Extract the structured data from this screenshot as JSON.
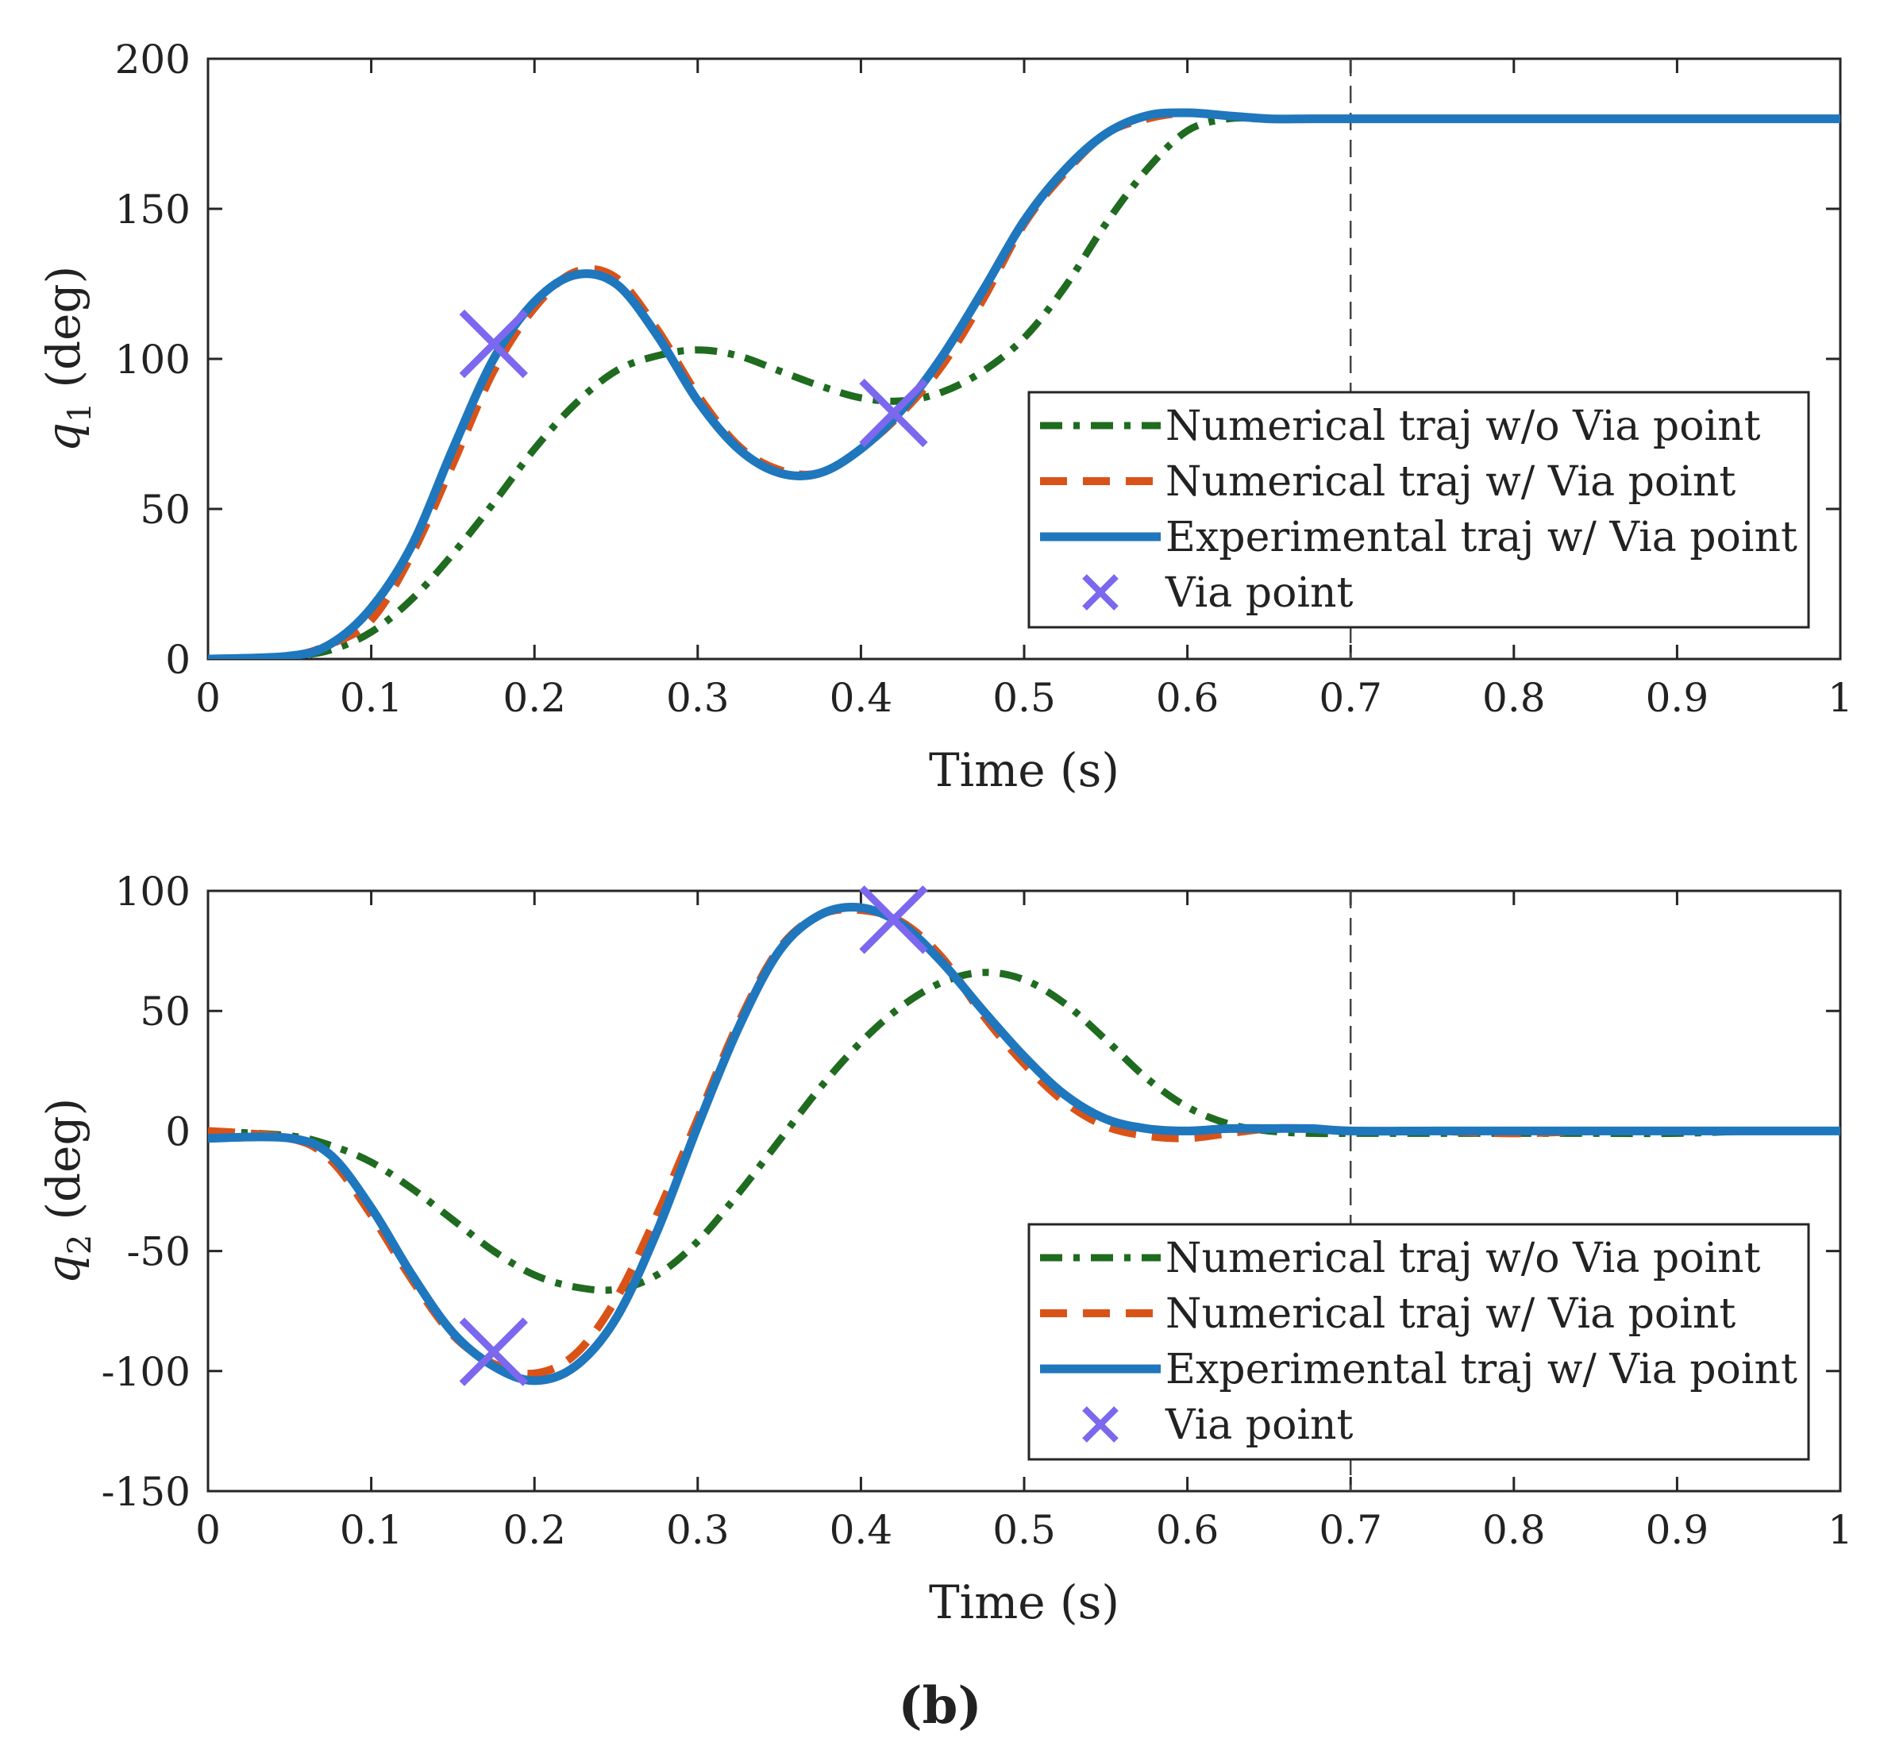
{
  "caption": "(b)",
  "chart_data": [
    {
      "type": "line",
      "id": "q1",
      "xlabel": "Time (s)",
      "ylabel_symbol": "q",
      "ylabel_subscript": "1",
      "ylabel_unit": "(deg)",
      "xlim": [
        0,
        1
      ],
      "ylim": [
        0,
        200
      ],
      "xticks": [
        "0",
        "0.1",
        "0.2",
        "0.3",
        "0.4",
        "0.5",
        "0.6",
        "0.7",
        "0.8",
        "0.9",
        "1"
      ],
      "yticks": [
        "0",
        "50",
        "100",
        "150",
        "200"
      ],
      "vline_x": 0.7,
      "legend_position": "right",
      "x": [
        0,
        0.05,
        0.075,
        0.1,
        0.125,
        0.15,
        0.175,
        0.2,
        0.225,
        0.25,
        0.275,
        0.3,
        0.325,
        0.35,
        0.375,
        0.4,
        0.425,
        0.45,
        0.475,
        0.5,
        0.525,
        0.55,
        0.575,
        0.6,
        0.625,
        0.65,
        0.675,
        0.7,
        0.75,
        0.8,
        0.85,
        0.9,
        0.95,
        1.0
      ],
      "series": [
        {
          "name": "Numerical traj w/o Via point",
          "color": "#1f6b1f",
          "style": "dashdot",
          "values": [
            0,
            1,
            3,
            9,
            20,
            35,
            52,
            70,
            85,
            96,
            101,
            103,
            101,
            96,
            91,
            87,
            86,
            89,
            96,
            107,
            124,
            145,
            163,
            176,
            180,
            180,
            180,
            180,
            180,
            180,
            180,
            180,
            180,
            180
          ]
        },
        {
          "name": "Numerical traj w/ Via point",
          "color": "#d95319",
          "style": "dashed",
          "values": [
            0,
            1,
            5,
            13,
            35,
            65,
            96,
            117,
            129,
            127,
            110,
            88,
            71,
            63,
            62,
            70,
            82,
            98,
            120,
            145,
            162,
            175,
            180,
            182,
            181,
            180,
            180,
            180,
            180,
            180,
            180,
            180,
            180,
            180
          ]
        },
        {
          "name": "Experimental traj w/ Via point",
          "color": "#1f77bd",
          "style": "solid",
          "values": [
            0,
            1,
            5,
            17,
            38,
            70,
            100,
            119,
            128,
            125,
            108,
            86,
            70,
            62,
            62,
            70,
            83,
            101,
            123,
            146,
            163,
            175,
            181,
            182,
            181,
            180,
            180,
            180,
            180,
            180,
            180,
            180,
            180,
            180
          ]
        }
      ],
      "via_points": {
        "name": "Via point",
        "color": "#7b68ee",
        "x": [
          0.175,
          0.42
        ],
        "y": [
          105,
          82
        ]
      }
    },
    {
      "type": "line",
      "id": "q2",
      "xlabel": "Time (s)",
      "ylabel_symbol": "q",
      "ylabel_subscript": "2",
      "ylabel_unit": "(deg)",
      "xlim": [
        0,
        1
      ],
      "ylim": [
        -150,
        100
      ],
      "xticks": [
        "0",
        "0.1",
        "0.2",
        "0.3",
        "0.4",
        "0.5",
        "0.6",
        "0.7",
        "0.8",
        "0.9",
        "1"
      ],
      "yticks": [
        "-150",
        "-100",
        "-50",
        "0",
        "50",
        "100"
      ],
      "vline_x": 0.7,
      "legend_position": "right",
      "x": [
        0,
        0.05,
        0.075,
        0.1,
        0.125,
        0.15,
        0.175,
        0.2,
        0.225,
        0.25,
        0.275,
        0.3,
        0.325,
        0.35,
        0.375,
        0.4,
        0.425,
        0.45,
        0.475,
        0.5,
        0.525,
        0.55,
        0.575,
        0.6,
        0.625,
        0.65,
        0.675,
        0.7,
        0.75,
        0.8,
        0.85,
        0.9,
        0.95,
        1.0
      ],
      "series": [
        {
          "name": "Numerical traj w/o Via point",
          "color": "#1f6b1f",
          "style": "dashdot",
          "values": [
            0,
            -2,
            -6,
            -13,
            -24,
            -37,
            -50,
            -60,
            -65,
            -66,
            -60,
            -46,
            -26,
            -4,
            18,
            37,
            52,
            62,
            66,
            63,
            53,
            38,
            22,
            10,
            3,
            0,
            -1,
            -1,
            -1,
            -1,
            -1,
            -1,
            0,
            0
          ]
        },
        {
          "name": "Numerical traj w/ Via point",
          "color": "#d95319",
          "style": "dashed",
          "values": [
            0,
            -3,
            -12,
            -35,
            -62,
            -85,
            -97,
            -101,
            -93,
            -70,
            -35,
            5,
            45,
            76,
            90,
            92,
            87,
            72,
            48,
            28,
            12,
            2,
            -2,
            -3,
            -1,
            1,
            1,
            0,
            0,
            -1,
            0,
            0,
            0,
            0
          ]
        },
        {
          "name": "Experimental traj w/ Via point",
          "color": "#1f77bd",
          "style": "solid",
          "values": [
            -3,
            -3,
            -10,
            -32,
            -60,
            -84,
            -98,
            -104,
            -98,
            -78,
            -42,
            2,
            43,
            75,
            90,
            93,
            86,
            70,
            50,
            31,
            15,
            5,
            1,
            0,
            1,
            1,
            1,
            0,
            0,
            0,
            0,
            0,
            0,
            0
          ]
        }
      ],
      "via_points": {
        "name": "Via point",
        "color": "#7b68ee",
        "x": [
          0.175,
          0.42
        ],
        "y": [
          -92,
          88
        ]
      }
    }
  ]
}
